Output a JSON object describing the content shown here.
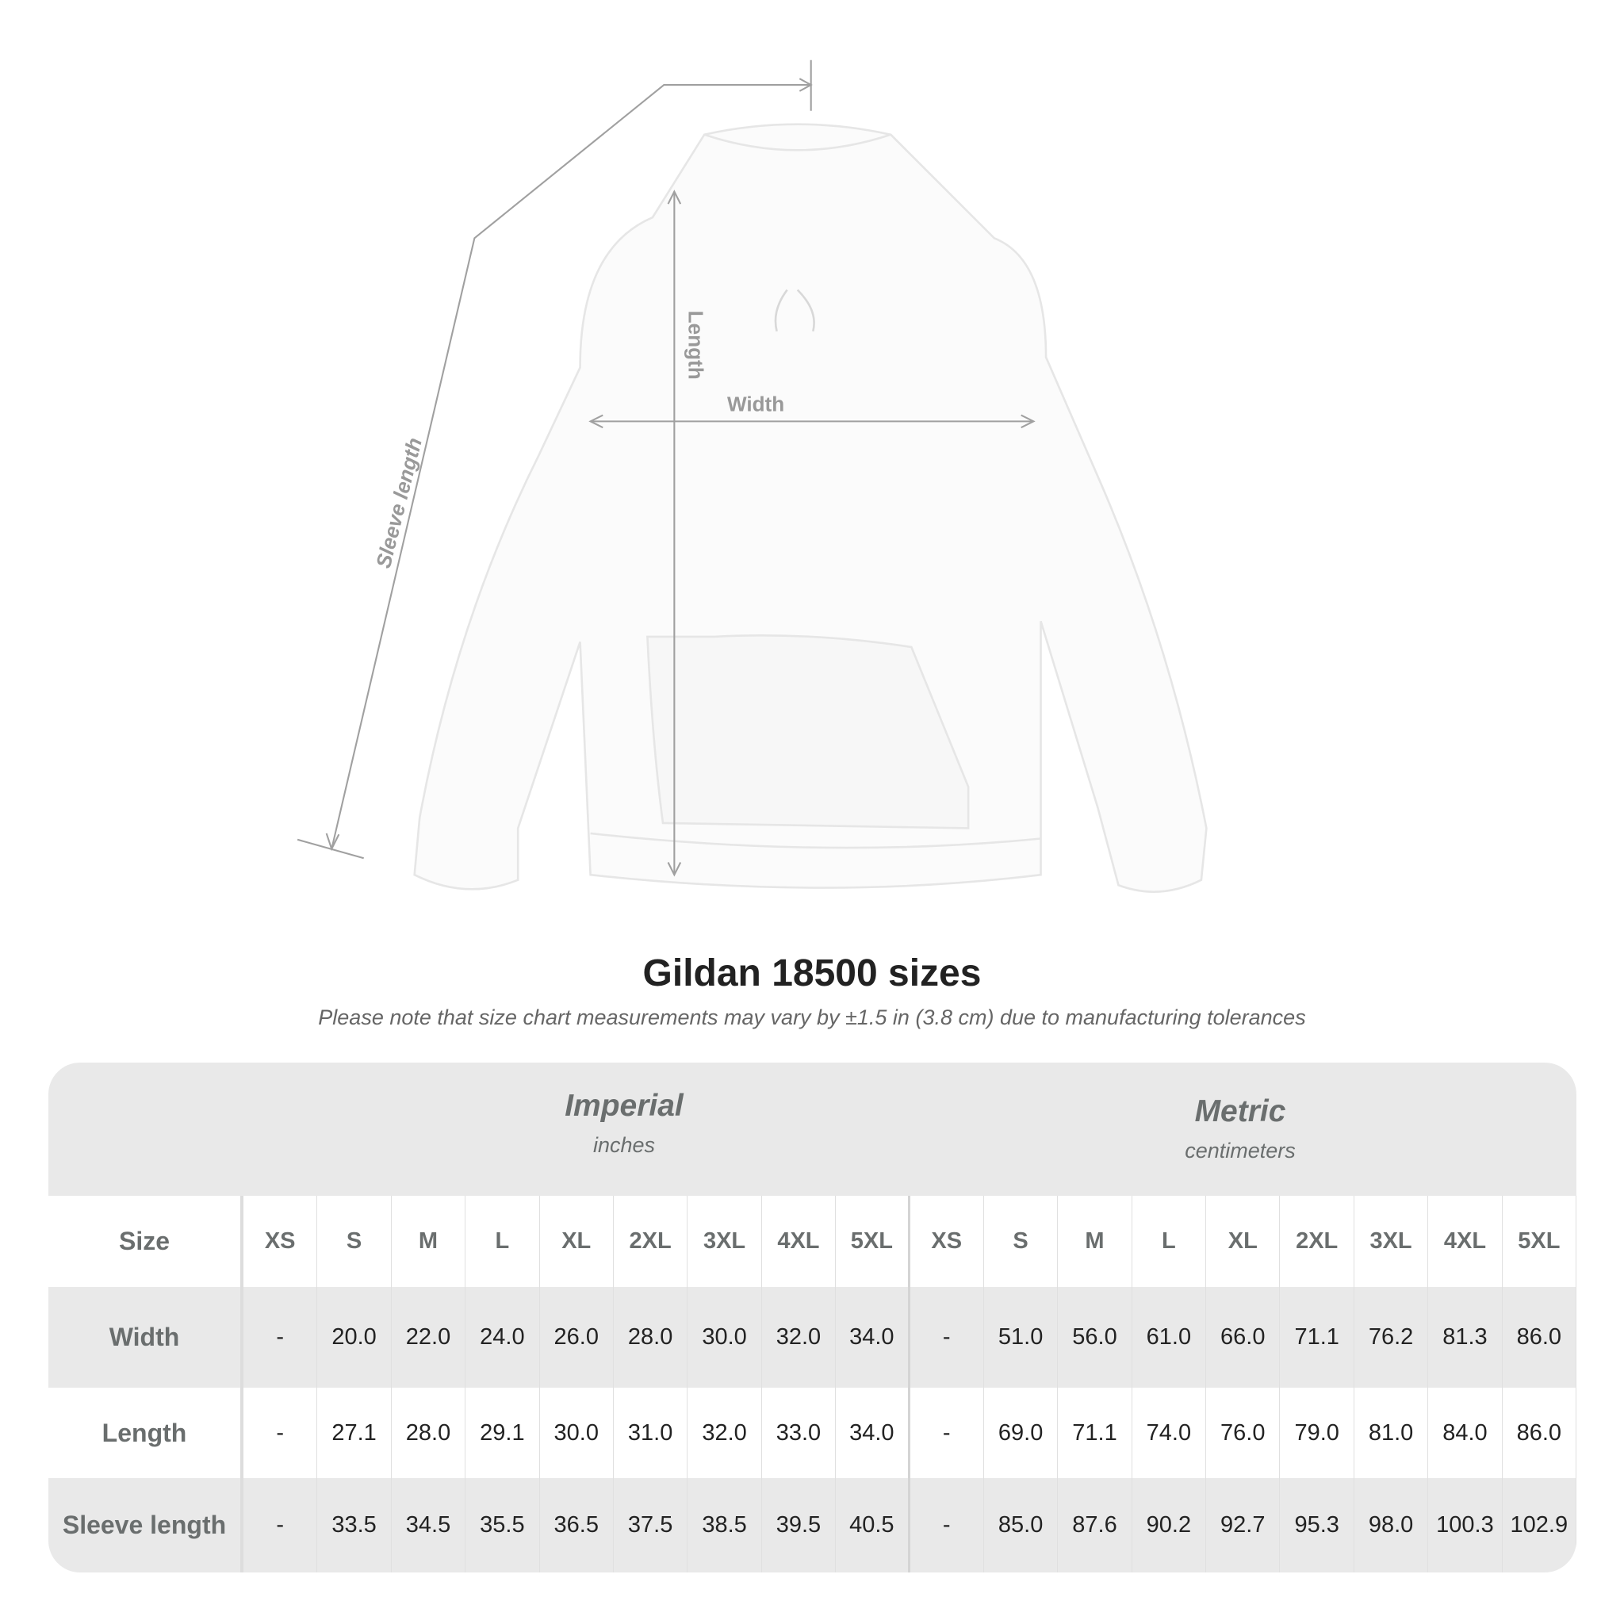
{
  "diagram": {
    "labels": {
      "length": "Length",
      "width": "Width",
      "sleeve": "Sleeve length"
    },
    "garment": "hoodie"
  },
  "title": "Gildan 18500 sizes",
  "note": "Please note that size chart measurements may vary by ±1.5 in (3.8 cm) due to manufacturing tolerances",
  "table": {
    "imperial": {
      "name": "Imperial",
      "unit": "inches"
    },
    "metric": {
      "name": "Metric",
      "unit": "centimeters"
    },
    "size_label": "Size",
    "sizes": [
      "XS",
      "S",
      "M",
      "L",
      "XL",
      "2XL",
      "3XL",
      "4XL",
      "5XL"
    ],
    "rows": [
      {
        "label": "Width",
        "imperial": [
          "-",
          "20.0",
          "22.0",
          "24.0",
          "26.0",
          "28.0",
          "30.0",
          "32.0",
          "34.0"
        ],
        "metric": [
          "-",
          "51.0",
          "56.0",
          "61.0",
          "66.0",
          "71.1",
          "76.2",
          "81.3",
          "86.0"
        ]
      },
      {
        "label": "Length",
        "imperial": [
          "-",
          "27.1",
          "28.0",
          "29.1",
          "30.0",
          "31.0",
          "32.0",
          "33.0",
          "34.0"
        ],
        "metric": [
          "-",
          "69.0",
          "71.1",
          "74.0",
          "76.0",
          "79.0",
          "81.0",
          "84.0",
          "86.0"
        ]
      },
      {
        "label": "Sleeve length",
        "imperial": [
          "-",
          "33.5",
          "34.5",
          "35.5",
          "36.5",
          "37.5",
          "38.5",
          "39.5",
          "40.5"
        ],
        "metric": [
          "-",
          "85.0",
          "87.6",
          "90.2",
          "92.7",
          "95.3",
          "98.0",
          "100.3",
          "102.9"
        ]
      }
    ]
  },
  "colors": {
    "band": "#e9e9e9",
    "label": "#6a6e6e",
    "text": "#222222",
    "measure_line": "#a0a0a0"
  }
}
